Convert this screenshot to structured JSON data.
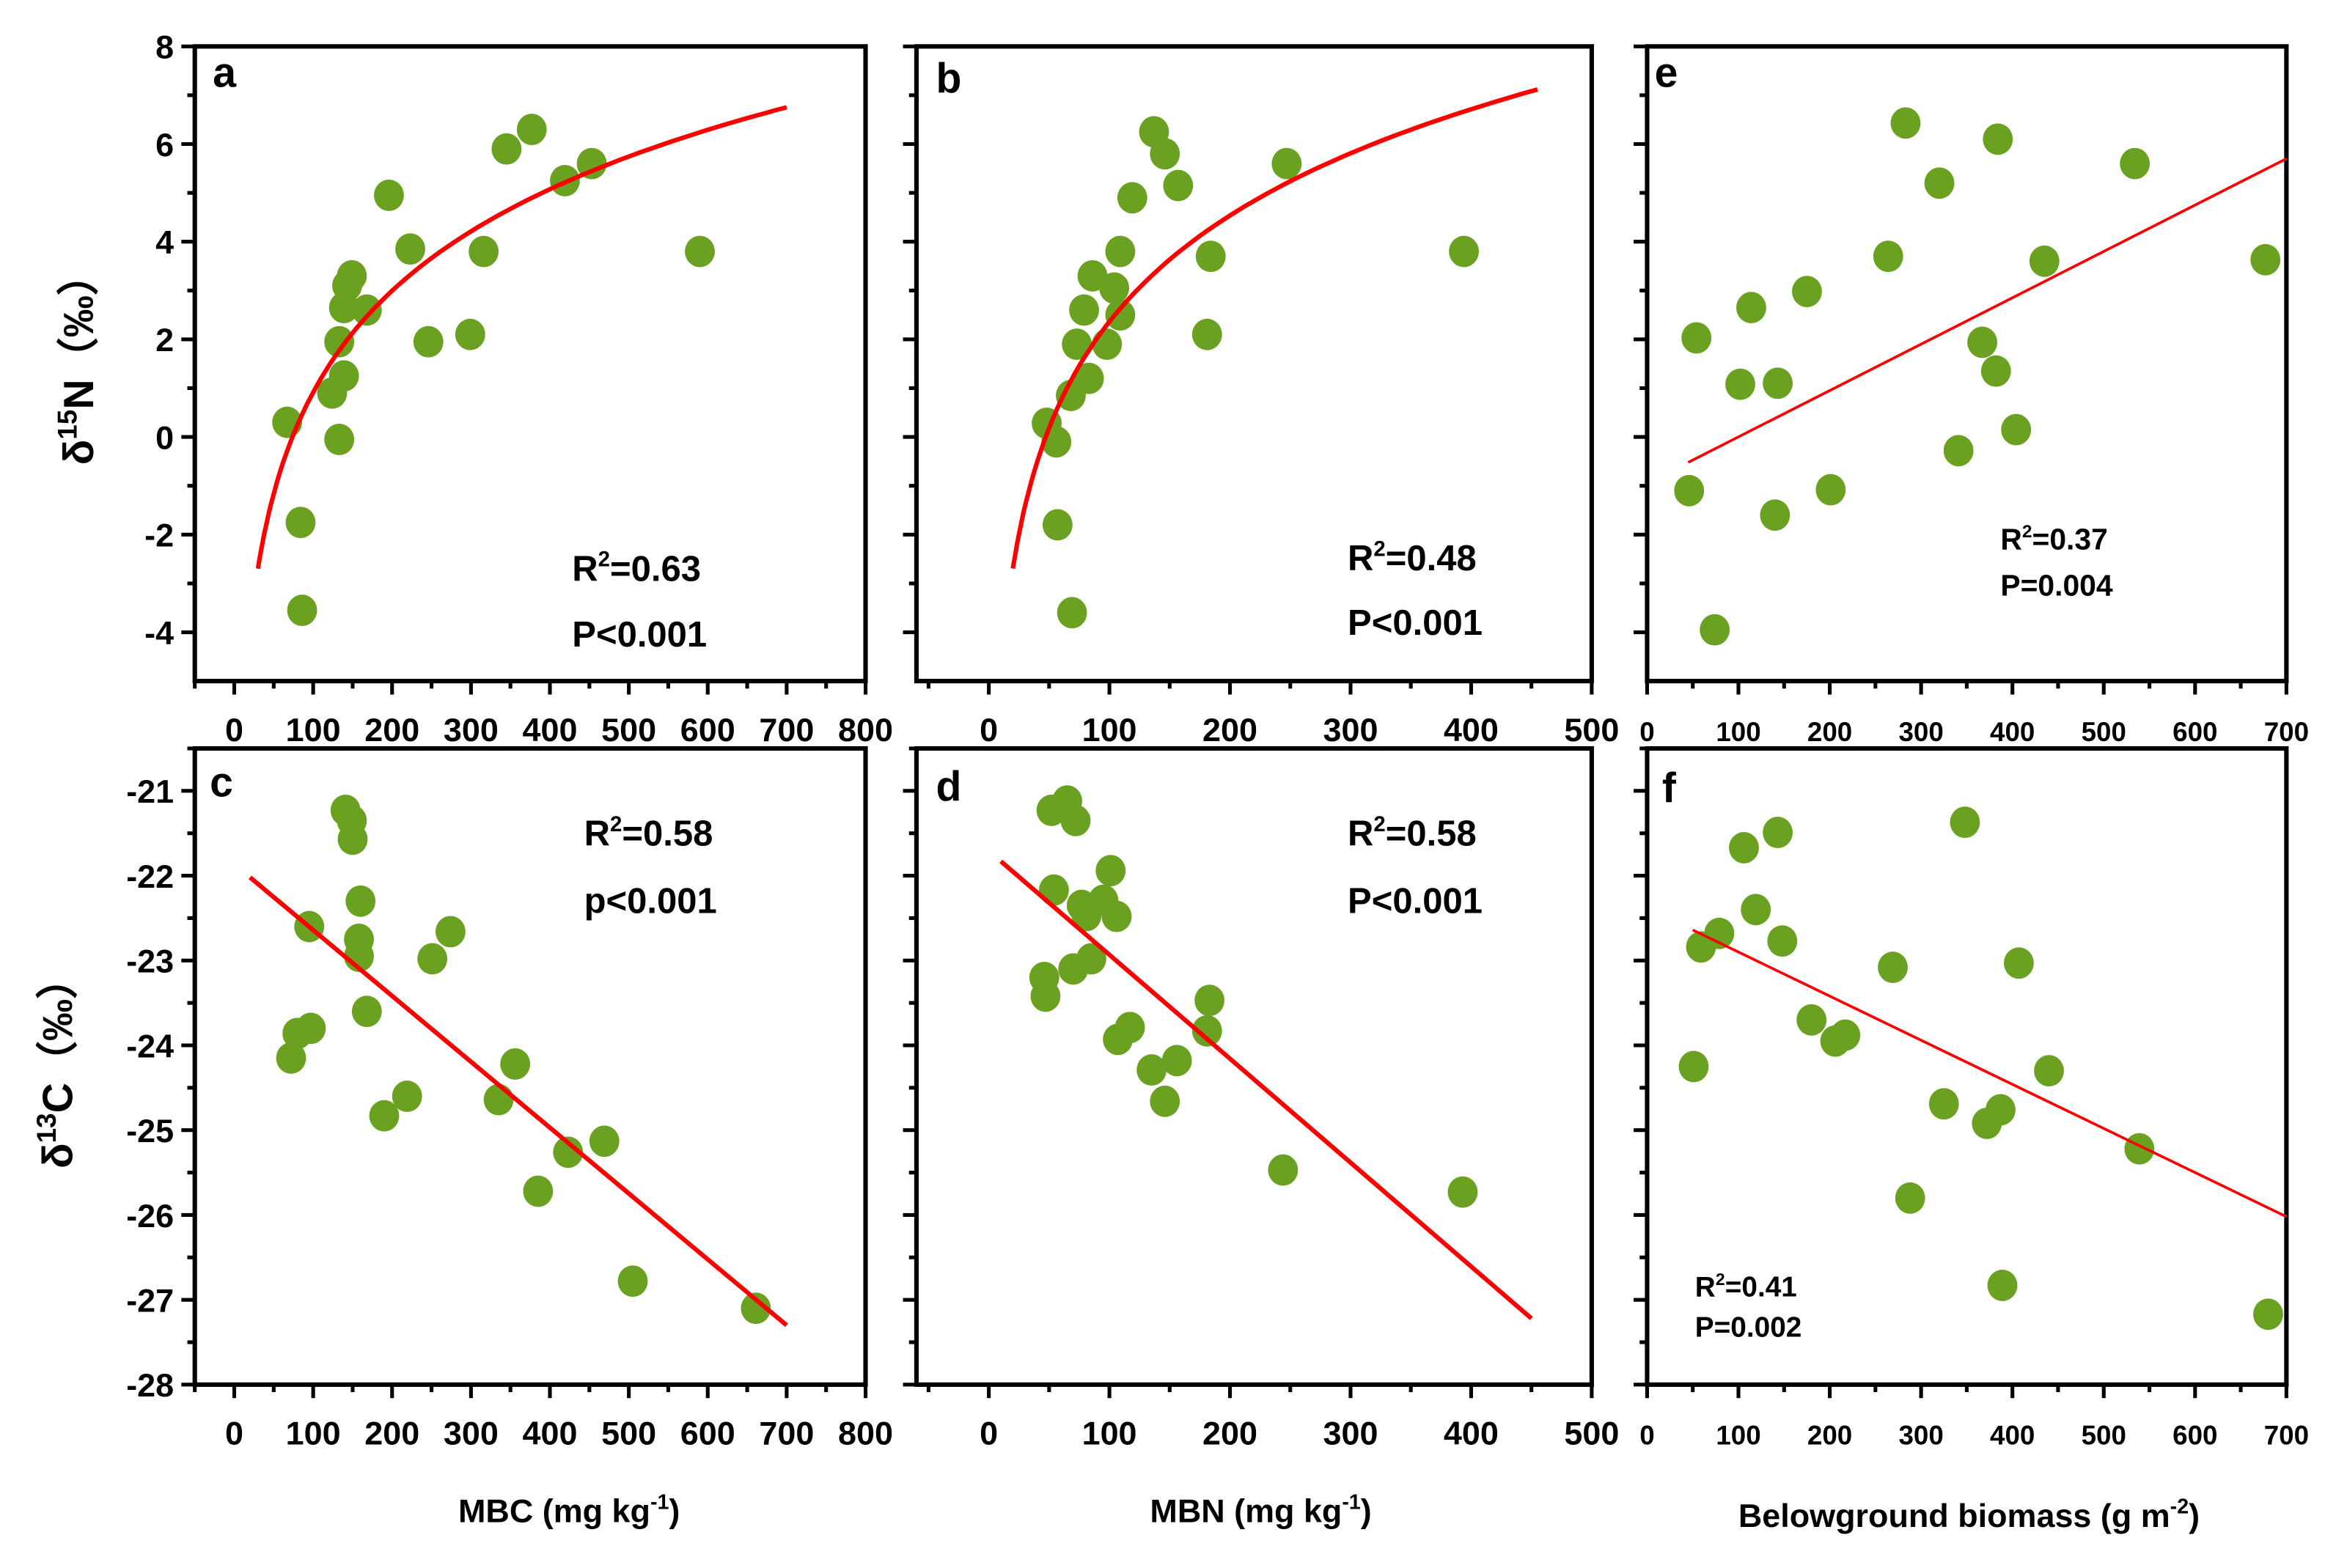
{
  "colors": {
    "point": "#6aa121",
    "fit": "#ff0000",
    "axis": "#000000"
  },
  "row_labels": {
    "top": {
      "pre": "δ",
      "sup": "15",
      "text": "N（‰）"
    },
    "bottom": {
      "pre": "δ",
      "sup": "13",
      "text": "C（‰）"
    }
  },
  "column_labels": [
    {
      "text": "MBC (mg kg",
      "sup": "-1",
      "tail": ")"
    },
    {
      "text": "MBN (mg kg",
      "sup": "-1",
      "tail": ")"
    },
    {
      "text": "Belowground biomass (g m",
      "sup": "-2",
      "tail": ")"
    }
  ],
  "chart_data": [
    {
      "panel": "a",
      "type": "scatter",
      "xlabel": "MBC (mg kg-1)",
      "ylabel": "δ15N (‰)",
      "xlim": [
        -50,
        800
      ],
      "ylim": [
        -5,
        8
      ],
      "xticks": [
        0,
        100,
        200,
        300,
        400,
        500,
        600,
        700,
        800
      ],
      "yticks": [
        8,
        6,
        4,
        2,
        0,
        -2,
        -4
      ],
      "show_xtick_labels": true,
      "show_ytick_labels": true,
      "points": [
        [
          67,
          0.3
        ],
        [
          84,
          -1.75
        ],
        [
          86,
          -3.55
        ],
        [
          124,
          0.9
        ],
        [
          139,
          1.25
        ],
        [
          133,
          1.95
        ],
        [
          133,
          -0.05
        ],
        [
          139,
          2.65
        ],
        [
          143,
          3.1
        ],
        [
          149,
          3.3
        ],
        [
          168,
          2.6
        ],
        [
          196,
          4.95
        ],
        [
          223,
          3.85
        ],
        [
          246,
          1.95
        ],
        [
          299,
          2.1
        ],
        [
          316,
          3.8
        ],
        [
          345,
          5.9
        ],
        [
          377,
          6.3
        ],
        [
          419,
          5.25
        ],
        [
          453,
          5.6
        ],
        [
          590,
          3.8
        ]
      ],
      "fit": {
        "type": "log",
        "a": -12.9,
        "b": 3.0,
        "xrange": [
          30,
          700
        ]
      },
      "r2": "0.63",
      "p": "P<0.001"
    },
    {
      "panel": "b",
      "type": "scatter",
      "xlabel": "MBN (mg kg-1)",
      "ylabel": "δ15N (‰)",
      "xlim": [
        -60,
        500
      ],
      "ylim": [
        -5,
        8
      ],
      "xticks": [
        0,
        100,
        200,
        300,
        400,
        500
      ],
      "yticks": [
        8,
        6,
        4,
        2,
        0,
        -2,
        -4
      ],
      "show_xtick_labels": true,
      "show_ytick_labels": false,
      "points": [
        [
          48,
          0.28
        ],
        [
          56,
          -0.1
        ],
        [
          57,
          -1.8
        ],
        [
          69,
          -3.6
        ],
        [
          68,
          0.85
        ],
        [
          83,
          1.2
        ],
        [
          73,
          1.9
        ],
        [
          98,
          1.9
        ],
        [
          79,
          2.6
        ],
        [
          86,
          3.3
        ],
        [
          104,
          3.05
        ],
        [
          109,
          2.5
        ],
        [
          109,
          3.8
        ],
        [
          119,
          4.9
        ],
        [
          137,
          6.25
        ],
        [
          146,
          5.8
        ],
        [
          157,
          5.15
        ],
        [
          184,
          3.7
        ],
        [
          181,
          2.1
        ],
        [
          247,
          5.6
        ],
        [
          394,
          3.8
        ]
      ],
      "fit": {
        "type": "log",
        "a": -12.1,
        "b": 3.14,
        "xrange": [
          20,
          455
        ]
      },
      "r2": "0.48",
      "p": "P<0.001"
    },
    {
      "panel": "e",
      "type": "scatter",
      "xlabel": "Belowground biomass (g m-2)",
      "ylabel": "δ15N (‰)",
      "xlim": [
        0,
        700
      ],
      "ylim": [
        -5,
        8
      ],
      "xticks": [
        0,
        100,
        200,
        300,
        400,
        500,
        600,
        700
      ],
      "yticks": [
        8,
        6,
        4,
        2,
        0,
        -2,
        -4
      ],
      "show_xtick_labels": true,
      "show_ytick_labels": false,
      "points": [
        [
          54,
          2.03
        ],
        [
          46,
          -1.1
        ],
        [
          74,
          -3.95
        ],
        [
          102,
          1.08
        ],
        [
          114,
          2.65
        ],
        [
          143,
          1.1
        ],
        [
          140,
          -1.6
        ],
        [
          175,
          2.98
        ],
        [
          201,
          -1.08
        ],
        [
          264,
          3.7
        ],
        [
          283,
          6.43
        ],
        [
          320,
          5.2
        ],
        [
          341,
          -0.28
        ],
        [
          367,
          1.94
        ],
        [
          382,
          1.35
        ],
        [
          384,
          6.1
        ],
        [
          404,
          0.15
        ],
        [
          435,
          3.6
        ],
        [
          534,
          5.6
        ],
        [
          677,
          3.63
        ]
      ],
      "fit": {
        "type": "linear",
        "from": [
          45,
          -0.52
        ],
        "to": [
          700,
          5.7
        ]
      },
      "r2": "0.37",
      "p": "P=0.004"
    },
    {
      "panel": "c",
      "type": "scatter",
      "xlabel": "MBC (mg kg-1)",
      "ylabel": "δ13C (‰)",
      "xlim": [
        -50,
        800
      ],
      "ylim": [
        -28,
        -20.5
      ],
      "xticks": [
        0,
        100,
        200,
        300,
        400,
        500,
        600,
        700,
        800
      ],
      "yticks": [
        -21,
        -22,
        -23,
        -24,
        -25,
        -26,
        -27,
        -28
      ],
      "show_xtick_labels": true,
      "show_ytick_labels": true,
      "points": [
        [
          72,
          -24.15
        ],
        [
          80,
          -23.86
        ],
        [
          97,
          -23.8
        ],
        [
          95,
          -22.6
        ],
        [
          141,
          -21.23
        ],
        [
          149,
          -21.35
        ],
        [
          150,
          -21.57
        ],
        [
          160,
          -22.3
        ],
        [
          158,
          -22.75
        ],
        [
          158,
          -22.95
        ],
        [
          168,
          -23.6
        ],
        [
          190,
          -24.83
        ],
        [
          219,
          -24.6
        ],
        [
          251,
          -22.98
        ],
        [
          274,
          -22.66
        ],
        [
          335,
          -24.64
        ],
        [
          356,
          -24.22
        ],
        [
          385,
          -25.72
        ],
        [
          423,
          -25.26
        ],
        [
          469,
          -25.13
        ],
        [
          505,
          -26.78
        ],
        [
          661,
          -27.1
        ]
      ],
      "fit": {
        "type": "linear",
        "from": [
          20,
          -22.02
        ],
        "to": [
          700,
          -27.3
        ]
      },
      "r2": "0.58",
      "p": "p<0.001"
    },
    {
      "panel": "d",
      "type": "scatter",
      "xlabel": "MBN (mg kg-1)",
      "ylabel": "δ13C (‰)",
      "xlim": [
        -60,
        500
      ],
      "ylim": [
        -28,
        -20.5
      ],
      "xticks": [
        0,
        100,
        200,
        300,
        400,
        500
      ],
      "yticks": [
        -21,
        -22,
        -23,
        -24,
        -25,
        -26,
        -27,
        -28
      ],
      "show_xtick_labels": true,
      "show_ytick_labels": false,
      "points": [
        [
          46,
          -23.2
        ],
        [
          47,
          -23.42
        ],
        [
          52,
          -21.23
        ],
        [
          54,
          -22.17
        ],
        [
          65,
          -21.12
        ],
        [
          72,
          -21.35
        ],
        [
          70,
          -23.1
        ],
        [
          77,
          -22.35
        ],
        [
          81,
          -22.47
        ],
        [
          85,
          -22.98
        ],
        [
          95,
          -22.29
        ],
        [
          101,
          -21.94
        ],
        [
          106,
          -22.48
        ],
        [
          107,
          -23.93
        ],
        [
          117,
          -23.79
        ],
        [
          135,
          -24.29
        ],
        [
          146,
          -24.66
        ],
        [
          156,
          -24.18
        ],
        [
          183,
          -23.47
        ],
        [
          181,
          -23.83
        ],
        [
          244,
          -25.47
        ],
        [
          393,
          -25.73
        ]
      ],
      "fit": {
        "type": "linear",
        "from": [
          10,
          -21.83
        ],
        "to": [
          450,
          -27.22
        ]
      },
      "r2": "0.58",
      "p": "P<0.001"
    },
    {
      "panel": "f",
      "type": "scatter",
      "xlabel": "Belowground biomass (g m-2)",
      "ylabel": "δ13C (‰)",
      "xlim": [
        0,
        700
      ],
      "ylim": [
        -28,
        -20.5
      ],
      "xticks": [
        0,
        100,
        200,
        300,
        400,
        500,
        600,
        700
      ],
      "yticks": [
        -21,
        -22,
        -23,
        -24,
        -25,
        -26,
        -27,
        -28
      ],
      "show_xtick_labels": true,
      "show_ytick_labels": false,
      "points": [
        [
          51,
          -24.25
        ],
        [
          59,
          -22.84
        ],
        [
          79,
          -22.68
        ],
        [
          106,
          -21.67
        ],
        [
          119,
          -22.4
        ],
        [
          143,
          -21.49
        ],
        [
          148,
          -22.77
        ],
        [
          180,
          -23.7
        ],
        [
          206,
          -23.95
        ],
        [
          217,
          -23.88
        ],
        [
          269,
          -23.08
        ],
        [
          325,
          -24.69
        ],
        [
          288,
          -25.8
        ],
        [
          348,
          -21.37
        ],
        [
          372,
          -24.92
        ],
        [
          387,
          -24.76
        ],
        [
          389,
          -26.83
        ],
        [
          407,
          -23.03
        ],
        [
          440,
          -24.3
        ],
        [
          539,
          -25.22
        ],
        [
          680,
          -27.17
        ]
      ],
      "fit": {
        "type": "linear",
        "from": [
          50,
          -22.64
        ],
        "to": [
          700,
          -26.02
        ]
      },
      "r2": "0.41",
      "p": "P=0.002"
    }
  ]
}
